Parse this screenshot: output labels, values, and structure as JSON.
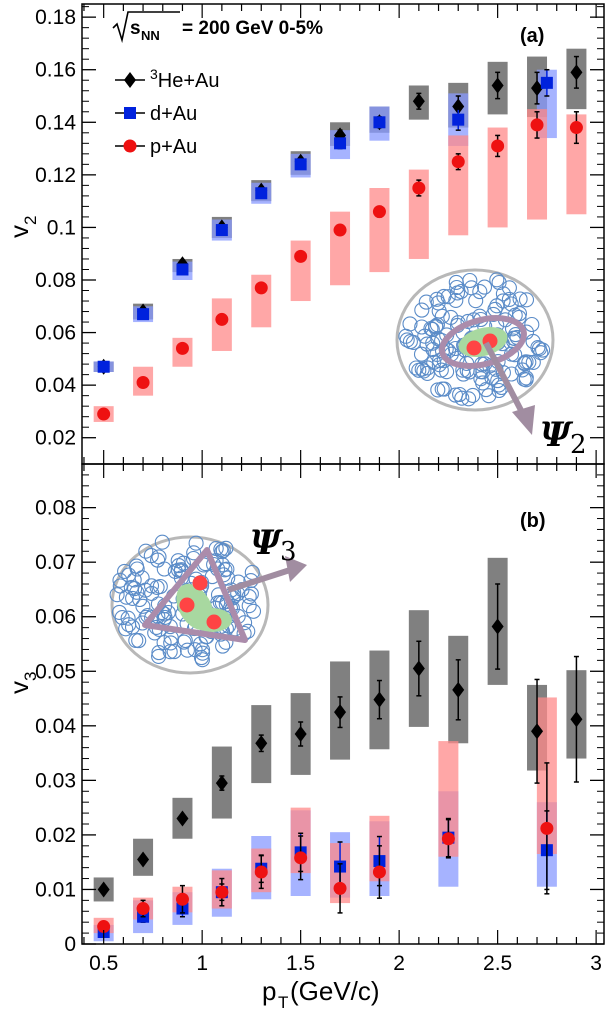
{
  "header": {
    "energy": "s",
    "energy_sub": "NN",
    "energy_rest": "= 200 GeV 0-5%"
  },
  "colors": {
    "he3": "#000000",
    "he3_sys": "#808080",
    "d": "#0022dd",
    "d_sys": "#8899ff",
    "p": "#ee1111",
    "p_sys": "#ff8a8a"
  },
  "legend": [
    {
      "key": "he3",
      "sup": "3",
      "label": "He+Au",
      "marker": "diamond"
    },
    {
      "key": "d",
      "label": "d+Au",
      "marker": "square"
    },
    {
      "key": "p",
      "label": "p+Au",
      "marker": "circle"
    }
  ],
  "xaxis": {
    "label": "p",
    "label_sub": "T",
    "label_rest": "(GeV/c)",
    "range": [
      0.39,
      3.04
    ],
    "ticks": [
      "0.5",
      "1",
      "1.5",
      "2",
      "2.5",
      "3"
    ]
  },
  "chart_data": [
    {
      "type": "scatter",
      "panel": "(a)",
      "ylabel": "v",
      "ylabel_sub": "2",
      "ylim": [
        0.01,
        0.185
      ],
      "yticks": [
        "0.02",
        "0.04",
        "0.06",
        "0.08",
        "0.1",
        "0.12",
        "0.14",
        "0.16",
        "0.18"
      ],
      "psi_label": "Ψ",
      "psi_sub": "2",
      "series": [
        {
          "key": "he3",
          "name": "He+Au",
          "x": [
            0.5,
            0.7,
            0.9,
            1.1,
            1.3,
            1.5,
            1.7,
            1.9,
            2.1,
            2.3,
            2.5,
            2.7,
            2.9
          ],
          "y": [
            0.047,
            0.068,
            0.086,
            0.1,
            0.114,
            0.125,
            0.135,
            0.14,
            0.148,
            0.146,
            0.154,
            0.153,
            0.159
          ],
          "stat": [
            0,
            0,
            0,
            0,
            0,
            0,
            0.002,
            0.002,
            0.003,
            0.004,
            0.005,
            0.006,
            0.006
          ],
          "sys_lo": [
            0.045,
            0.065,
            0.083,
            0.096,
            0.11,
            0.12,
            0.131,
            0.136,
            0.141,
            0.138,
            0.143,
            0.142,
            0.145
          ],
          "sys_hi": [
            0.049,
            0.071,
            0.088,
            0.104,
            0.118,
            0.129,
            0.14,
            0.146,
            0.154,
            0.155,
            0.163,
            0.165,
            0.168
          ]
        },
        {
          "key": "d",
          "name": "d+Au",
          "x": [
            0.5,
            0.7,
            0.9,
            1.1,
            1.3,
            1.5,
            1.7,
            1.9,
            2.3,
            2.75
          ],
          "y": [
            0.047,
            0.067,
            0.084,
            0.099,
            0.113,
            0.124,
            0.132,
            0.14,
            0.141,
            0.155
          ],
          "stat": [
            0,
            0,
            0,
            0,
            0,
            0,
            0.002,
            0.002,
            0.004,
            0.005
          ],
          "sys_lo": [
            0.045,
            0.064,
            0.08,
            0.095,
            0.109,
            0.119,
            0.126,
            0.133,
            0.131,
            0.134
          ],
          "sys_hi": [
            0.049,
            0.07,
            0.087,
            0.103,
            0.117,
            0.128,
            0.137,
            0.146,
            0.151,
            0.16
          ]
        },
        {
          "key": "p",
          "name": "p+Au",
          "x": [
            0.5,
            0.7,
            0.9,
            1.1,
            1.3,
            1.5,
            1.7,
            1.9,
            2.1,
            2.3,
            2.5,
            2.7,
            2.9
          ],
          "y": [
            0.029,
            0.041,
            0.054,
            0.065,
            0.077,
            0.089,
            0.099,
            0.106,
            0.115,
            0.125,
            0.131,
            0.139,
            0.138
          ],
          "stat": [
            0,
            0,
            0,
            0,
            0,
            0,
            0,
            0.002,
            0.003,
            0.003,
            0.004,
            0.005,
            0.006
          ],
          "sys_lo": [
            0.026,
            0.036,
            0.047,
            0.053,
            0.062,
            0.072,
            0.078,
            0.083,
            0.088,
            0.097,
            0.1,
            0.103,
            0.105
          ],
          "sys_hi": [
            0.032,
            0.047,
            0.058,
            0.073,
            0.082,
            0.095,
            0.106,
            0.115,
            0.122,
            0.135,
            0.138,
            0.145,
            0.143
          ]
        }
      ]
    },
    {
      "type": "scatter",
      "panel": "(b)",
      "ylabel": "v",
      "ylabel_sub": "3",
      "ylim": [
        0,
        0.088
      ],
      "yticks": [
        "0",
        "0.01",
        "0.02",
        "0.03",
        "0.04",
        "0.05",
        "0.06",
        "0.07",
        "0.08"
      ],
      "psi_label": "Ψ",
      "psi_sub": "3",
      "series": [
        {
          "key": "he3",
          "name": "He+Au",
          "x": [
            0.5,
            0.7,
            0.9,
            1.1,
            1.3,
            1.5,
            1.7,
            1.9,
            2.1,
            2.3,
            2.5,
            2.7,
            2.9
          ],
          "y": [
            0.01,
            0.0155,
            0.023,
            0.0295,
            0.0368,
            0.0385,
            0.0425,
            0.0448,
            0.0505,
            0.0466,
            0.0582,
            0.039,
            0.0412
          ],
          "stat": [
            0,
            0,
            0,
            0.0013,
            0.0015,
            0.0022,
            0.0028,
            0.0035,
            0.005,
            0.0055,
            0.0078,
            0.0095,
            0.0115
          ],
          "sys_lo": [
            0.0078,
            0.0125,
            0.0193,
            0.023,
            0.0295,
            0.031,
            0.0338,
            0.0357,
            0.0398,
            0.0368,
            0.0475,
            0.0318,
            0.034
          ],
          "sys_hi": [
            0.0122,
            0.0193,
            0.0268,
            0.0362,
            0.0438,
            0.046,
            0.0518,
            0.0538,
            0.0612,
            0.0565,
            0.0708,
            0.0475,
            0.0502
          ]
        },
        {
          "key": "d",
          "name": "d+Au",
          "x": [
            0.5,
            0.7,
            0.9,
            1.1,
            1.3,
            1.5,
            1.7,
            1.9,
            2.25,
            2.75
          ],
          "y": [
            0.0022,
            0.005,
            0.0065,
            0.0095,
            0.0138,
            0.0168,
            0.0142,
            0.0152,
            0.0195,
            0.0172
          ],
          "stat": [
            0.0005,
            0.001,
            0.0015,
            0.0015,
            0.0025,
            0.0035,
            0.0045,
            0.0045,
            0.0035,
            0.0072
          ],
          "sys_lo": [
            0.0005,
            0.002,
            0.0035,
            0.005,
            0.0082,
            0.0088,
            0.0085,
            0.0088,
            0.0105,
            0.0105
          ],
          "sys_hi": [
            0.0035,
            0.008,
            0.0095,
            0.0138,
            0.0198,
            0.0245,
            0.0205,
            0.0225,
            0.028,
            0.026
          ]
        },
        {
          "key": "p",
          "name": "p+Au",
          "x": [
            0.5,
            0.7,
            0.9,
            1.1,
            1.3,
            1.5,
            1.7,
            1.9,
            2.25,
            2.75
          ],
          "y": [
            0.0032,
            0.0065,
            0.0082,
            0.0095,
            0.0132,
            0.0158,
            0.0102,
            0.0132,
            0.0193,
            0.0212
          ],
          "stat": [
            0.0008,
            0.0015,
            0.0025,
            0.0025,
            0.003,
            0.004,
            0.0045,
            0.0048,
            0.0035,
            0.012
          ],
          "sys_lo": [
            0.002,
            0.0045,
            0.0058,
            0.0065,
            0.0095,
            0.013,
            0.0075,
            0.0115,
            0.016,
            0.0165
          ],
          "sys_hi": [
            0.0048,
            0.0085,
            0.0105,
            0.0135,
            0.0175,
            0.025,
            0.0185,
            0.0235,
            0.0372,
            0.0452
          ]
        }
      ]
    }
  ]
}
